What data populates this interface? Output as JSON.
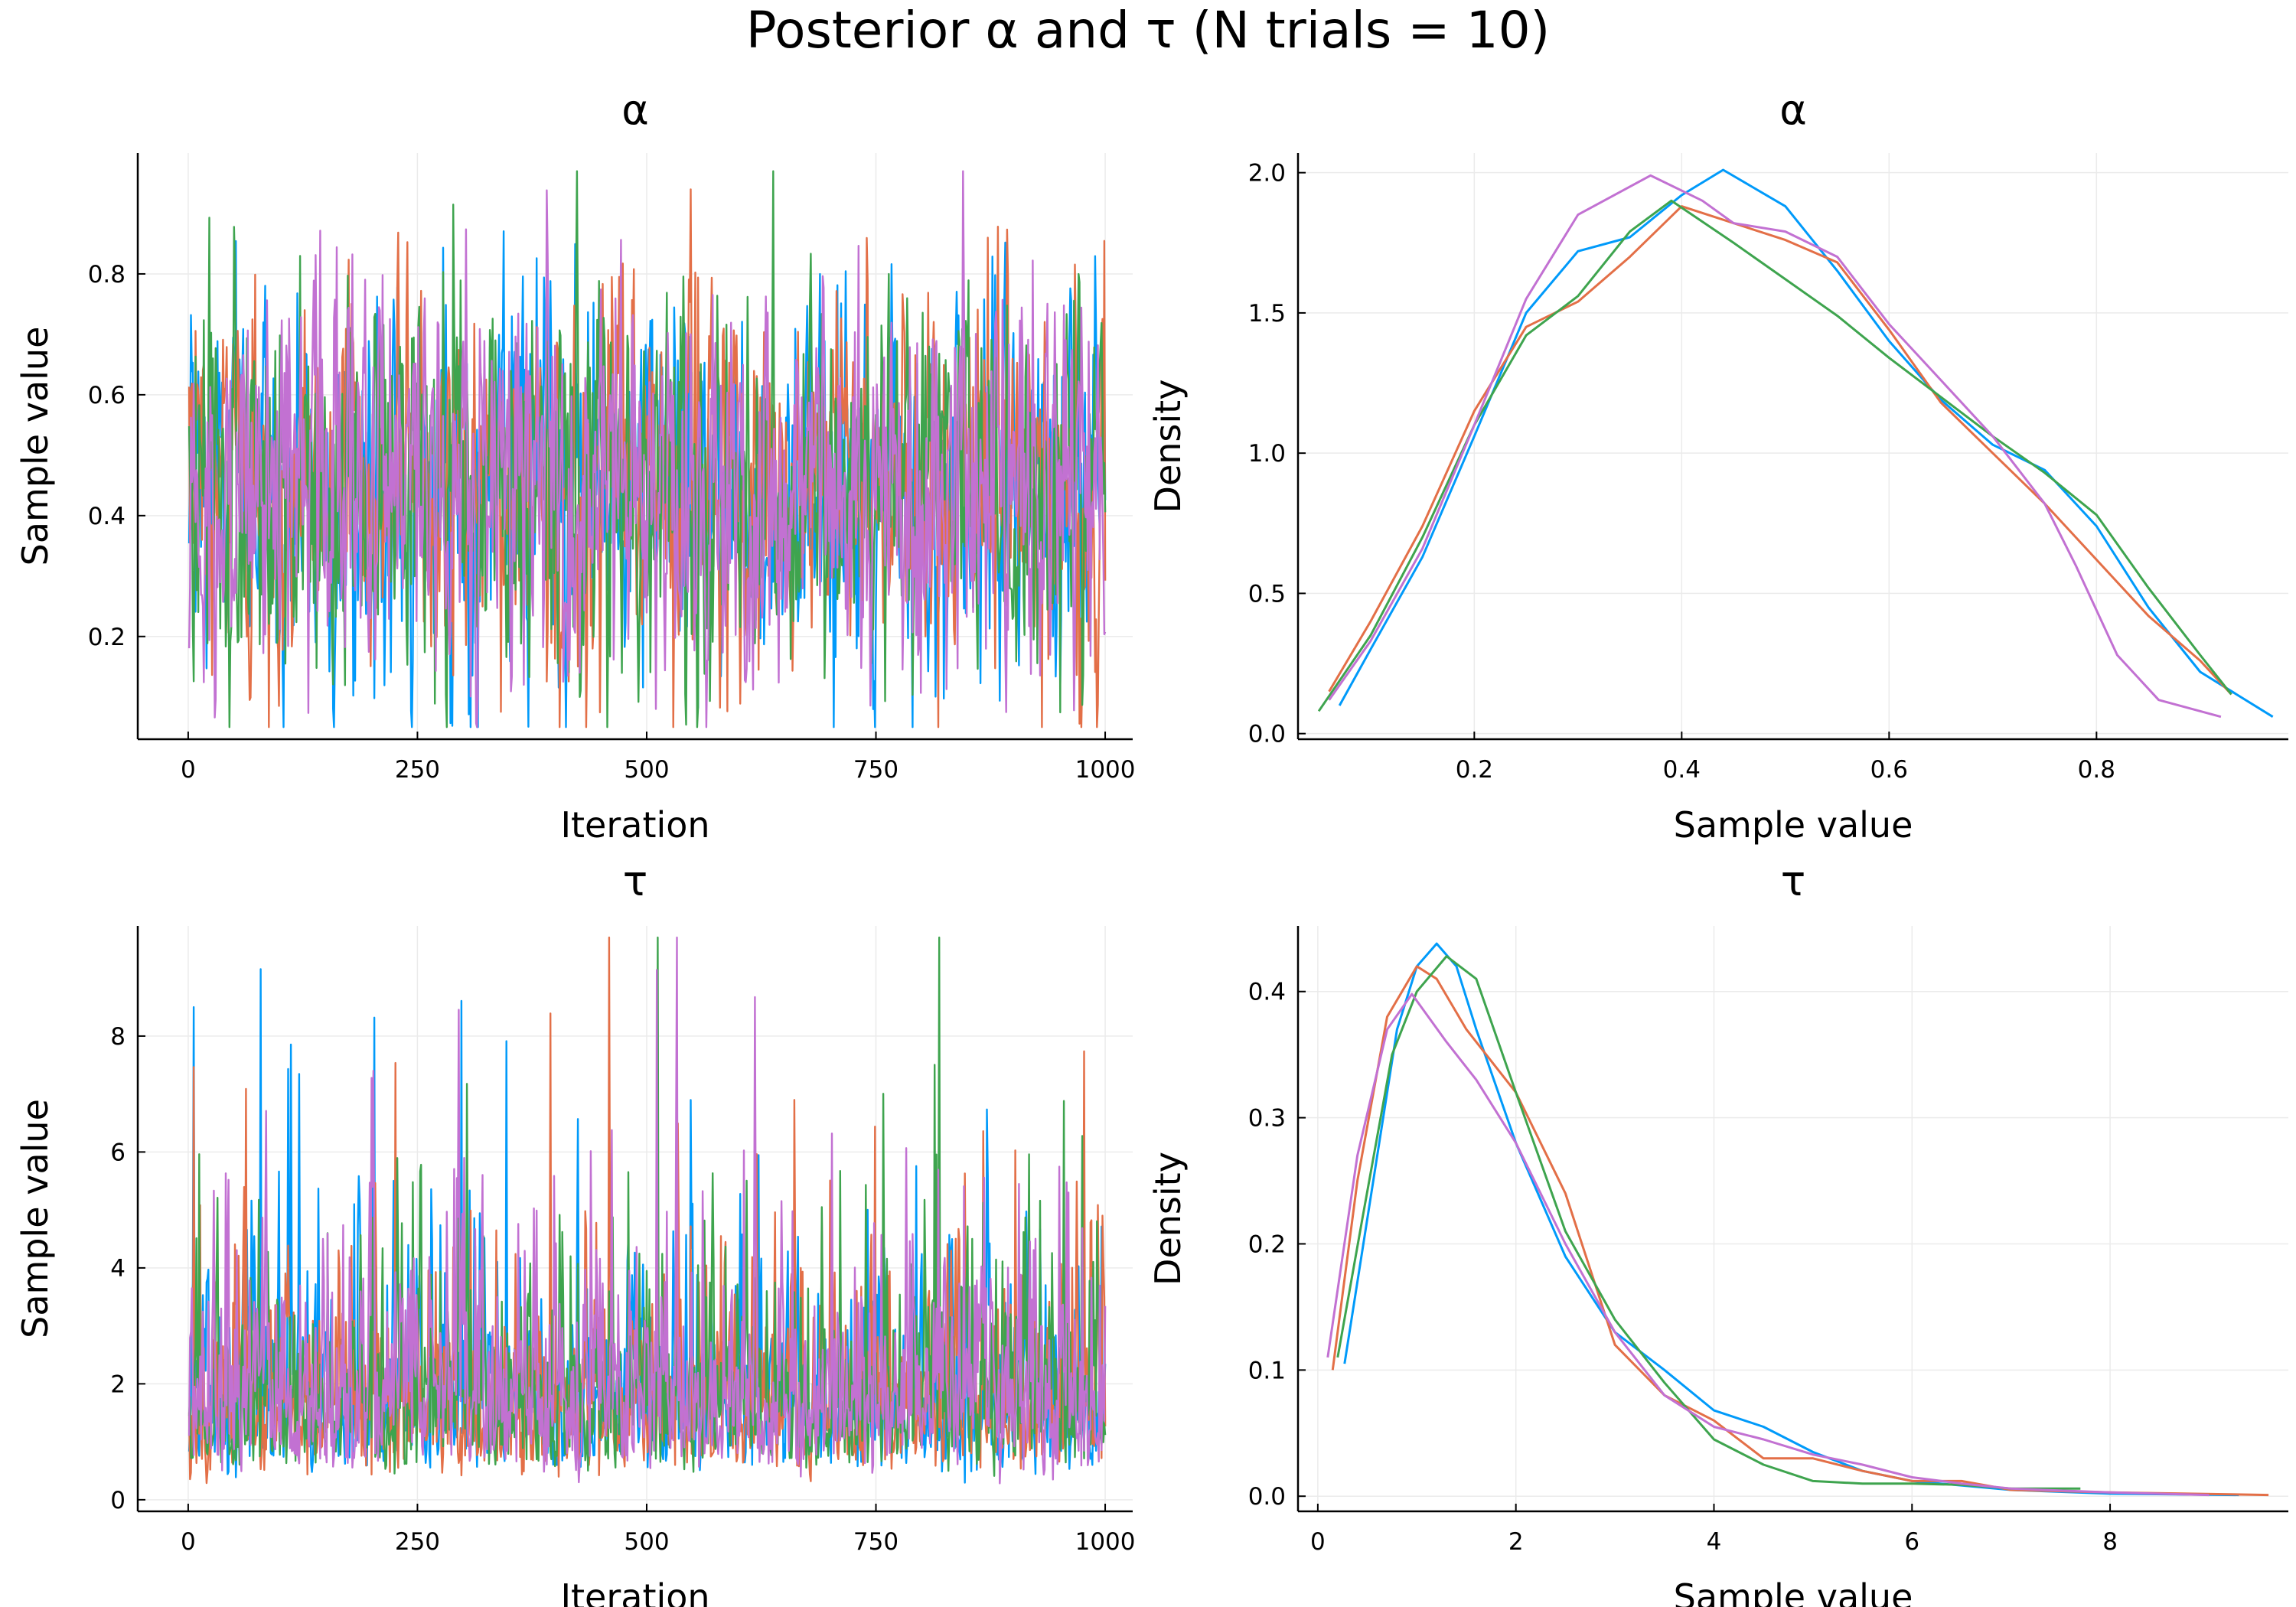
{
  "suptitle": "Posterior α and τ (N trials = 10)",
  "colors": {
    "chain1": "#009AFA",
    "chain2": "#E36F47",
    "chain3": "#3EA44E",
    "chain4": "#C271D2",
    "grid": "#EBEBEB",
    "axis": "#000000"
  },
  "chart_data": [
    {
      "id": "alpha-trace",
      "type": "line",
      "title": "α",
      "xlabel": "Iteration",
      "ylabel": "Sample value",
      "xlim": [
        -55,
        1030
      ],
      "ylim": [
        0.03,
        1.0
      ],
      "xticks": [
        0,
        250,
        500,
        750,
        1000
      ],
      "yticks": [
        0.2,
        0.4,
        0.6,
        0.8
      ],
      "grid": true,
      "trace": {
        "n": 1000,
        "mean": 0.45,
        "sd": 0.155,
        "min": 0.05,
        "max": 0.97,
        "rho": 0.35
      }
    },
    {
      "id": "alpha-density",
      "type": "line",
      "title": "α",
      "xlabel": "Sample value",
      "ylabel": "Density",
      "xlim": [
        0.03,
        0.985
      ],
      "ylim": [
        -0.02,
        2.07
      ],
      "xticks": [
        0.2,
        0.4,
        0.6,
        0.8
      ],
      "yticks": [
        0.0,
        0.5,
        1.0,
        1.5,
        2.0
      ],
      "grid": true,
      "series": [
        {
          "chain": 1,
          "x": [
            0.07,
            0.1,
            0.15,
            0.2,
            0.25,
            0.3,
            0.35,
            0.4,
            0.44,
            0.5,
            0.55,
            0.6,
            0.65,
            0.7,
            0.75,
            0.8,
            0.85,
            0.9,
            0.97
          ],
          "y": [
            0.1,
            0.3,
            0.63,
            1.06,
            1.5,
            1.72,
            1.77,
            1.92,
            2.01,
            1.88,
            1.65,
            1.4,
            1.19,
            1.03,
            0.94,
            0.74,
            0.45,
            0.22,
            0.06
          ]
        },
        {
          "chain": 2,
          "x": [
            0.06,
            0.1,
            0.15,
            0.2,
            0.25,
            0.3,
            0.35,
            0.4,
            0.45,
            0.5,
            0.55,
            0.6,
            0.65,
            0.7,
            0.75,
            0.8,
            0.85,
            0.9,
            0.93
          ],
          "y": [
            0.15,
            0.4,
            0.74,
            1.15,
            1.45,
            1.54,
            1.7,
            1.88,
            1.82,
            1.76,
            1.68,
            1.44,
            1.18,
            1.0,
            0.82,
            0.62,
            0.42,
            0.26,
            0.14
          ]
        },
        {
          "chain": 3,
          "x": [
            0.05,
            0.1,
            0.15,
            0.2,
            0.25,
            0.3,
            0.35,
            0.39,
            0.45,
            0.5,
            0.55,
            0.6,
            0.65,
            0.7,
            0.75,
            0.8,
            0.85,
            0.9,
            0.93
          ],
          "y": [
            0.08,
            0.35,
            0.7,
            1.1,
            1.42,
            1.56,
            1.79,
            1.9,
            1.75,
            1.62,
            1.49,
            1.34,
            1.2,
            1.06,
            0.93,
            0.78,
            0.52,
            0.28,
            0.14
          ]
        },
        {
          "chain": 4,
          "x": [
            0.06,
            0.1,
            0.15,
            0.2,
            0.25,
            0.3,
            0.37,
            0.42,
            0.45,
            0.5,
            0.55,
            0.6,
            0.65,
            0.7,
            0.75,
            0.78,
            0.82,
            0.86,
            0.92
          ],
          "y": [
            0.12,
            0.33,
            0.66,
            1.1,
            1.55,
            1.85,
            1.99,
            1.9,
            1.82,
            1.79,
            1.7,
            1.46,
            1.26,
            1.06,
            0.82,
            0.6,
            0.28,
            0.12,
            0.06
          ]
        }
      ]
    },
    {
      "id": "tau-trace",
      "type": "line",
      "title": "τ",
      "xlabel": "Iteration",
      "ylabel": "Sample value",
      "xlim": [
        -55,
        1030
      ],
      "ylim": [
        -0.2,
        9.9
      ],
      "xticks": [
        0,
        250,
        500,
        750,
        1000
      ],
      "yticks": [
        0,
        2,
        4,
        6,
        8
      ],
      "grid": true,
      "trace": {
        "n": 1000,
        "median": 1.7,
        "logsd": 0.55,
        "min": 0.2,
        "max": 9.7,
        "rho": 0.3
      }
    },
    {
      "id": "tau-density",
      "type": "line",
      "title": "τ",
      "xlabel": "Sample value",
      "ylabel": "Density",
      "xlim": [
        -0.2,
        9.8
      ],
      "ylim": [
        -0.012,
        0.452
      ],
      "xticks": [
        0,
        2,
        4,
        6,
        8
      ],
      "yticks": [
        0.0,
        0.1,
        0.2,
        0.3,
        0.4
      ],
      "grid": true,
      "series": [
        {
          "chain": 1,
          "x": [
            0.27,
            0.5,
            0.8,
            1.0,
            1.2,
            1.4,
            1.6,
            2.0,
            2.5,
            3.0,
            3.5,
            4.0,
            4.5,
            5.0,
            5.5,
            6.0,
            7.0,
            8.0,
            9.3
          ],
          "y": [
            0.105,
            0.22,
            0.37,
            0.42,
            0.438,
            0.42,
            0.37,
            0.28,
            0.19,
            0.13,
            0.1,
            0.068,
            0.055,
            0.035,
            0.02,
            0.012,
            0.005,
            0.002,
            0.001
          ]
        },
        {
          "chain": 2,
          "x": [
            0.15,
            0.4,
            0.7,
            1.0,
            1.2,
            1.5,
            2.0,
            2.5,
            3.0,
            3.5,
            4.0,
            4.5,
            5.0,
            5.5,
            6.0,
            6.5,
            7.0,
            8.0,
            9.6
          ],
          "y": [
            0.1,
            0.25,
            0.38,
            0.42,
            0.41,
            0.37,
            0.32,
            0.24,
            0.12,
            0.08,
            0.06,
            0.03,
            0.03,
            0.02,
            0.012,
            0.012,
            0.005,
            0.003,
            0.001
          ]
        },
        {
          "chain": 3,
          "x": [
            0.2,
            0.45,
            0.75,
            1.0,
            1.3,
            1.6,
            2.0,
            2.5,
            3.0,
            3.5,
            4.0,
            4.5,
            5.0,
            5.5,
            6.0,
            6.5,
            7.0,
            7.7
          ],
          "y": [
            0.11,
            0.22,
            0.35,
            0.4,
            0.428,
            0.41,
            0.32,
            0.21,
            0.14,
            0.09,
            0.045,
            0.025,
            0.012,
            0.01,
            0.01,
            0.009,
            0.006,
            0.006
          ]
        },
        {
          "chain": 4,
          "x": [
            0.1,
            0.4,
            0.7,
            0.95,
            1.3,
            1.6,
            2.0,
            2.5,
            3.0,
            3.5,
            4.0,
            4.5,
            5.0,
            5.5,
            6.0,
            6.5,
            7.0,
            8.0,
            9.0
          ],
          "y": [
            0.11,
            0.27,
            0.37,
            0.398,
            0.36,
            0.33,
            0.28,
            0.2,
            0.13,
            0.08,
            0.055,
            0.045,
            0.033,
            0.025,
            0.015,
            0.01,
            0.006,
            0.003,
            0.001
          ]
        }
      ]
    }
  ]
}
